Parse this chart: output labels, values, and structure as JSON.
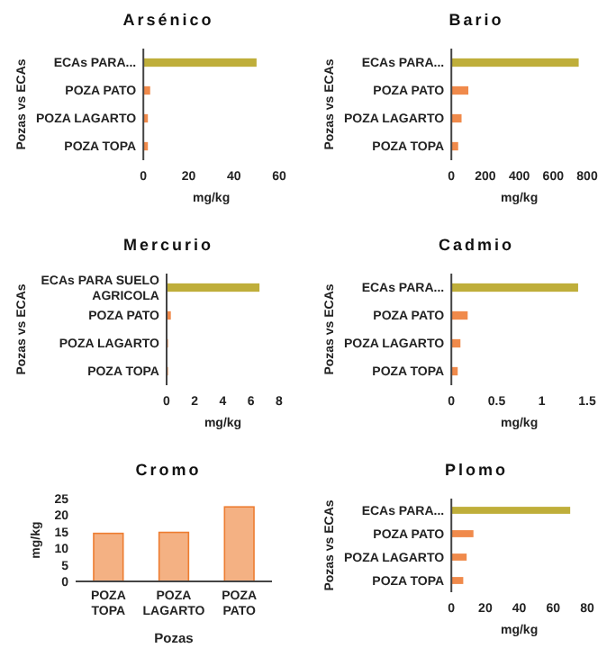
{
  "chart_data": [
    {
      "type": "bar",
      "orientation": "horizontal",
      "title": "Arsénico",
      "xlabel": "mg/kg",
      "ylabel": "Pozas vs ECAs",
      "categories": [
        "ECAs PARA...",
        "POZA PATO",
        "POZA LAGARTO",
        "POZA TOPA"
      ],
      "values": [
        50,
        3,
        2,
        2
      ],
      "colors": [
        "#bfae3a",
        "#f08a4b",
        "#f08a4b",
        "#f08a4b"
      ],
      "xlim": [
        0,
        60
      ],
      "xticks": [
        0,
        20,
        40,
        60
      ],
      "grid": false
    },
    {
      "type": "bar",
      "orientation": "horizontal",
      "title": "Bario",
      "xlabel": "mg/kg",
      "ylabel": "Pozas vs ECAs",
      "categories": [
        "ECAs PARA...",
        "POZA PATO",
        "POZA LAGARTO",
        "POZA TOPA"
      ],
      "values": [
        750,
        100,
        60,
        40
      ],
      "colors": [
        "#bfae3a",
        "#f08a4b",
        "#f08a4b",
        "#f08a4b"
      ],
      "xlim": [
        0,
        800
      ],
      "xticks": [
        0,
        200,
        400,
        600,
        800
      ],
      "grid": false
    },
    {
      "type": "bar",
      "orientation": "horizontal",
      "title": "Mercurio",
      "xlabel": "mg/kg",
      "ylabel": "Pozas vs ECAs",
      "categories": [
        "ECAs PARA SUELO AGRICOLA",
        "POZA PATO",
        "POZA LAGARTO",
        "POZA TOPA"
      ],
      "values": [
        6.6,
        0.3,
        0.1,
        0.1
      ],
      "colors": [
        "#bfae3a",
        "#f08a4b",
        "#f08a4b",
        "#f08a4b"
      ],
      "xlim": [
        0,
        8
      ],
      "xticks": [
        0,
        2,
        4,
        6,
        8
      ],
      "grid": false
    },
    {
      "type": "bar",
      "orientation": "horizontal",
      "title": "Cadmio",
      "xlabel": "mg/kg",
      "ylabel": "Pozas vs ECAs",
      "categories": [
        "ECAs PARA...",
        "POZA PATO",
        "POZA LAGARTO",
        "POZA TOPA"
      ],
      "values": [
        1.4,
        0.18,
        0.1,
        0.07
      ],
      "colors": [
        "#bfae3a",
        "#f08a4b",
        "#f08a4b",
        "#f08a4b"
      ],
      "xlim": [
        0,
        1.5
      ],
      "xticks": [
        0,
        0.5,
        1,
        1.5
      ],
      "grid": false
    },
    {
      "type": "bar",
      "title": "Cromo",
      "xlabel": "Pozas",
      "ylabel": "mg/kg",
      "categories": [
        "POZA TOPA",
        "POZA LAGARTO",
        "POZA PATO"
      ],
      "values": [
        14.5,
        14.8,
        22.5
      ],
      "colors": [
        "#f4b183",
        "#f4b183",
        "#f4b183"
      ],
      "ylim": [
        0,
        25
      ],
      "yticks": [
        0,
        5,
        10,
        15,
        20,
        25
      ],
      "grid": false
    },
    {
      "type": "bar",
      "orientation": "horizontal",
      "title": "Plomo",
      "xlabel": "mg/kg",
      "ylabel": "Pozas vs ECAs",
      "categories": [
        "ECAs PARA...",
        "POZA PATO",
        "POZA LAGARTO",
        "POZA TOPA"
      ],
      "values": [
        70,
        13,
        9,
        7
      ],
      "colors": [
        "#bfae3a",
        "#f08a4b",
        "#f08a4b",
        "#f08a4b"
      ],
      "xlim": [
        0,
        80
      ],
      "xticks": [
        0,
        20,
        40,
        60,
        80
      ],
      "grid": false
    }
  ]
}
